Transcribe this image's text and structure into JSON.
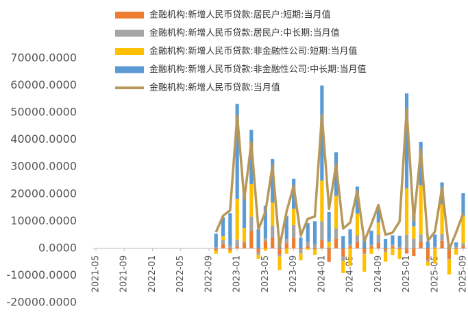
{
  "chart_data": {
    "type": "bar-line",
    "categories": [
      "2021-05",
      null,
      null,
      null,
      "2021-09",
      null,
      null,
      null,
      "2022-01",
      null,
      null,
      null,
      "2022-05",
      null,
      null,
      null,
      "2022-09",
      null,
      null,
      null,
      "2023-01",
      null,
      null,
      null,
      "2023-05",
      null,
      null,
      null,
      "2023-09",
      null,
      null,
      null,
      "2024-01",
      null,
      null,
      null,
      "2024-05",
      null,
      null,
      null,
      "2024-09",
      null,
      null,
      null,
      "2025-01",
      null,
      null,
      null,
      "2025-05",
      null,
      null,
      null,
      "2025-09"
    ],
    "series": [
      {
        "name": "金融机构:新增人民币贷款:居民户:短期:当月值",
        "color": "#ed7d31",
        "kind": "bar",
        "values": [
          null,
          null,
          null,
          null,
          null,
          null,
          null,
          null,
          null,
          null,
          null,
          null,
          null,
          null,
          null,
          null,
          null,
          -800,
          1500,
          -800,
          600,
          2000,
          6400,
          -1600,
          2700,
          4000,
          -2300,
          1900,
          3800,
          -400,
          800,
          -400,
          3000,
          -5000,
          3700,
          -3000,
          900,
          2300,
          -1700,
          800,
          2000,
          -900,
          700,
          -400,
          -1900,
          -2800,
          2500,
          -4200,
          300,
          2800,
          -3700,
          -300,
          900
        ]
      },
      {
        "name": "金融机构:新增人民币贷款:居民户:中长期:当月值",
        "color": "#a5a5a5",
        "kind": "bar",
        "values": [
          null,
          null,
          null,
          null,
          null,
          null,
          null,
          null,
          null,
          null,
          null,
          null,
          null,
          null,
          null,
          null,
          null,
          400,
          1500,
          1000,
          2600,
          500,
          5300,
          -800,
          1000,
          4400,
          -700,
          1600,
          4800,
          -1500,
          1500,
          1500,
          7000,
          400,
          3700,
          -1600,
          500,
          2500,
          -400,
          700,
          3000,
          -500,
          600,
          600,
          5100,
          3600,
          2700,
          -700,
          300,
          2500,
          -400,
          700,
          1000
        ]
      },
      {
        "name": "金融机构:新增人民币贷款:非金融性公司:短期:当月值",
        "color": "#ffc000",
        "kind": "bar",
        "values": [
          null,
          null,
          null,
          null,
          null,
          null,
          null,
          null,
          null,
          null,
          null,
          null,
          null,
          null,
          null,
          null,
          null,
          -1200,
          1500,
          -1000,
          15000,
          5000,
          12000,
          -1500,
          -800,
          8500,
          -5000,
          -2000,
          6000,
          -2500,
          -500,
          -2000,
          15000,
          2000,
          12000,
          -4500,
          -6500,
          8000,
          -6500,
          -2000,
          4500,
          -3500,
          -2500,
          -3500,
          17000,
          4500,
          18000,
          -1500,
          -5600,
          11000,
          -5500,
          -2000,
          10000
        ]
      },
      {
        "name": "金融机构:新增人民币贷款:非金融性公司:中长期:当月值",
        "color": "#5b9bd5",
        "kind": "bar",
        "values": [
          null,
          null,
          null,
          null,
          null,
          null,
          null,
          null,
          null,
          null,
          null,
          null,
          null,
          null,
          null,
          null,
          null,
          5000,
          7000,
          12000,
          35000,
          12500,
          20000,
          7000,
          12000,
          16000,
          3000,
          8500,
          11000,
          4000,
          7000,
          8500,
          35000,
          11000,
          16000,
          4500,
          5600,
          10000,
          4000,
          5000,
          6000,
          3500,
          3500,
          4000,
          35000,
          4500,
          16000,
          2500,
          4500,
          8000,
          1000,
          1500,
          8500
        ]
      },
      {
        "name": "金融机构:新增人民币贷款:当月值",
        "color": "#b8985a",
        "kind": "line",
        "values": [
          null,
          null,
          null,
          null,
          null,
          null,
          null,
          null,
          null,
          null,
          null,
          null,
          null,
          null,
          null,
          null,
          null,
          6000,
          12000,
          14000,
          49000,
          18000,
          39000,
          7000,
          13500,
          30500,
          500,
          13600,
          23100,
          4700,
          10900,
          11700,
          49200,
          14500,
          30900,
          7300,
          9500,
          21300,
          2600,
          9000,
          16000,
          5000,
          5800,
          9900,
          51300,
          10100,
          36400,
          2800,
          6200,
          22400,
          -500,
          5900,
          12900
        ]
      }
    ],
    "ylim": [
      -20000,
      70000
    ],
    "yticks": [
      {
        "value": -20000,
        "label": "-20000.0000"
      },
      {
        "value": -10000,
        "label": "-10000.0000"
      },
      {
        "value": 0,
        "label": "0.0000"
      },
      {
        "value": 10000,
        "label": "10000.0000"
      },
      {
        "value": 20000,
        "label": "20000.0000"
      },
      {
        "value": 30000,
        "label": "30000.0000"
      },
      {
        "value": 40000,
        "label": "40000.0000"
      },
      {
        "value": 50000,
        "label": "50000.0000"
      },
      {
        "value": 60000,
        "label": "60000.0000"
      },
      {
        "value": 70000,
        "label": "70000.0000"
      }
    ],
    "legend": "top"
  }
}
